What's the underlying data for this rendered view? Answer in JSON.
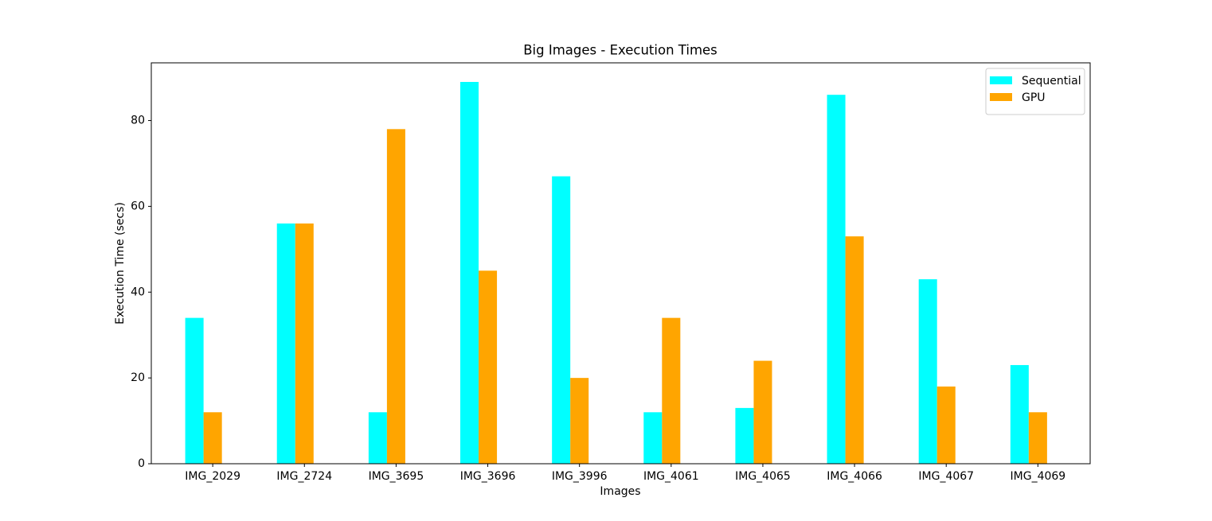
{
  "chart_data": {
    "type": "bar",
    "title": "Big Images - Execution Times",
    "x_label": "Images",
    "y_label": "Execution Time (secs)",
    "categories": [
      "IMG_2029",
      "IMG_2724",
      "IMG_3695",
      "IMG_3696",
      "IMG_3996",
      "IMG_4061",
      "IMG_4065",
      "IMG_4066",
      "IMG_4067",
      "IMG_4069"
    ],
    "series": [
      {
        "name": "Sequential",
        "color": "#00ffff",
        "values": [
          34,
          56,
          12,
          89,
          67,
          12,
          13,
          86,
          43,
          23
        ]
      },
      {
        "name": "GPU",
        "color": "#ffa500",
        "values": [
          12,
          56,
          78,
          45,
          20,
          34,
          24,
          53,
          18,
          12
        ]
      }
    ],
    "ylim": [
      0,
      93.45
    ],
    "yticks": [
      0,
      20,
      40,
      60,
      80
    ],
    "legend": "upper right"
  }
}
